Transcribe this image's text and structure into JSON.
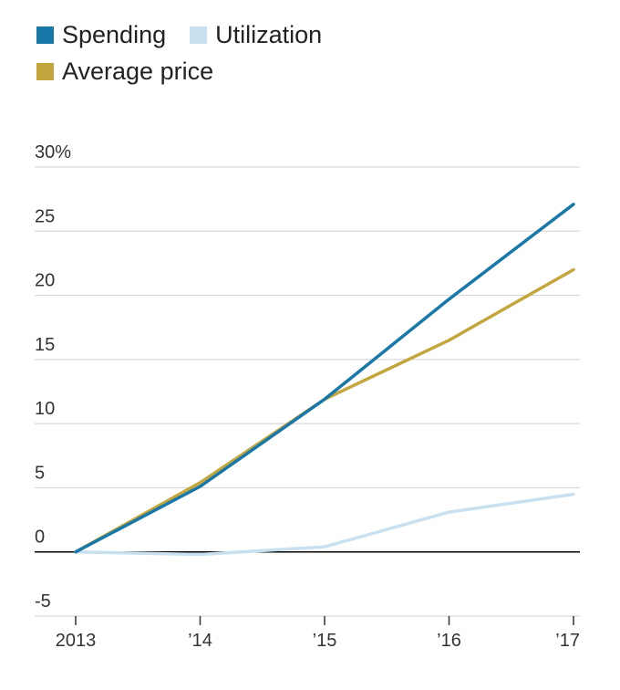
{
  "chart_data": {
    "type": "line",
    "title": "",
    "xlabel": "",
    "ylabel": "",
    "categories": [
      "2013",
      "’14",
      "’15",
      "’16",
      "’17"
    ],
    "ylim": [
      -5,
      30
    ],
    "yticks": [
      -5,
      0,
      5,
      10,
      15,
      20,
      25,
      30
    ],
    "ytick_labels": [
      "-5",
      "0",
      "5",
      "10",
      "15",
      "20",
      "25",
      "30%"
    ],
    "grid": true,
    "legend_position": "top-left",
    "series": [
      {
        "name": "Spending",
        "color": "#1a78a8",
        "values": [
          0,
          5.1,
          11.9,
          19.7,
          27.1
        ]
      },
      {
        "name": "Utilization",
        "color": "#c8e0f0",
        "values": [
          0,
          -0.2,
          0.4,
          3.1,
          4.5
        ]
      },
      {
        "name": "Average price",
        "color": "#c4a63e",
        "values": [
          0,
          5.4,
          11.9,
          16.5,
          22
        ]
      }
    ]
  }
}
